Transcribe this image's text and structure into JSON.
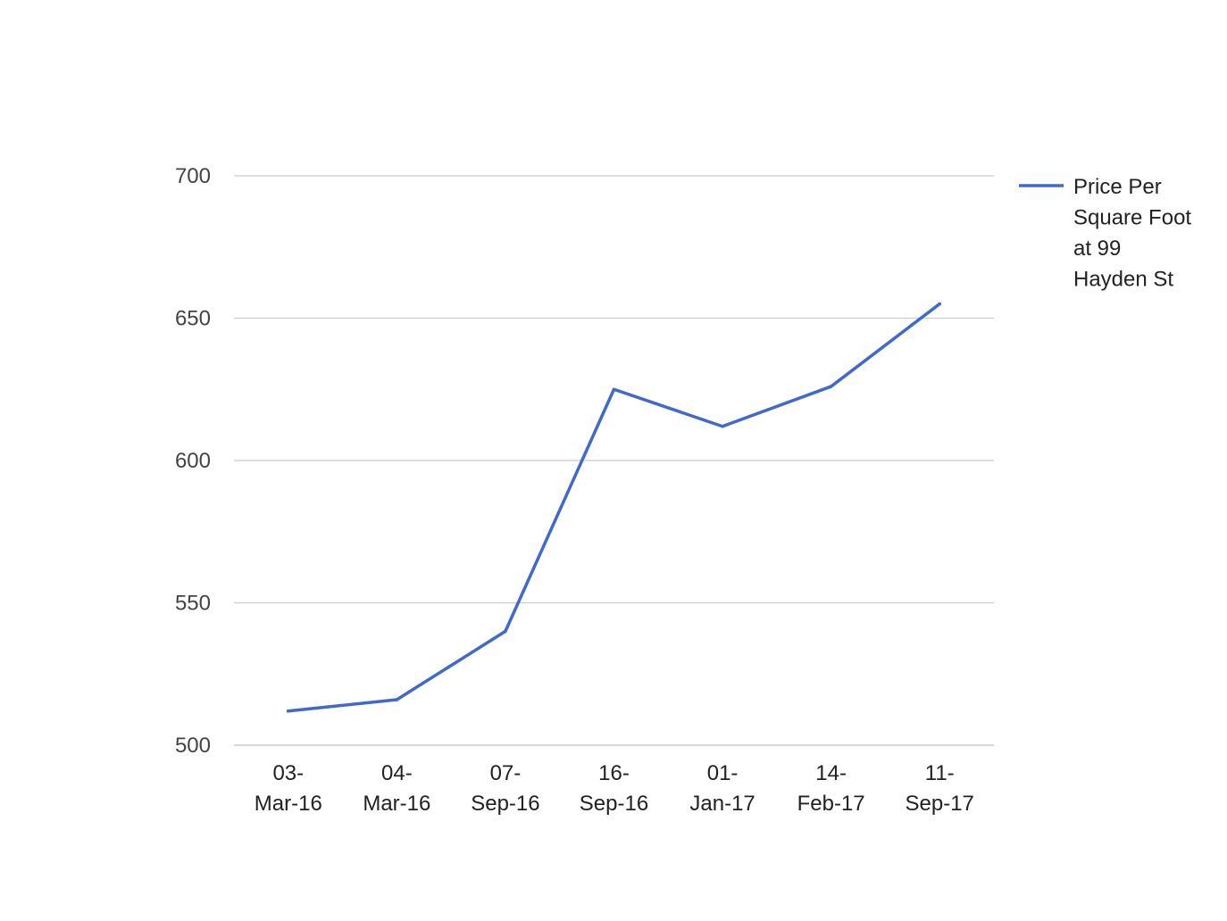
{
  "chart_data": {
    "type": "line",
    "title": "",
    "xlabel": "",
    "ylabel": "",
    "categories": [
      [
        "03-",
        "Mar-16"
      ],
      [
        "04-",
        "Mar-16"
      ],
      [
        "07-",
        "Sep-16"
      ],
      [
        "16-",
        "Sep-16"
      ],
      [
        "01-",
        "Jan-17"
      ],
      [
        "14-",
        "Feb-17"
      ],
      [
        "11-",
        "Sep-17"
      ]
    ],
    "series": [
      {
        "name": [
          "Price Per",
          "Square Foot",
          "at 99",
          "Hayden St"
        ],
        "color": "#4169c8",
        "values": [
          512,
          516,
          540,
          625,
          612,
          626,
          655
        ]
      }
    ],
    "ylim": [
      500,
      700
    ],
    "yticks": [
      500,
      550,
      600,
      650,
      700
    ],
    "grid": true,
    "legend_position": "right-top"
  }
}
